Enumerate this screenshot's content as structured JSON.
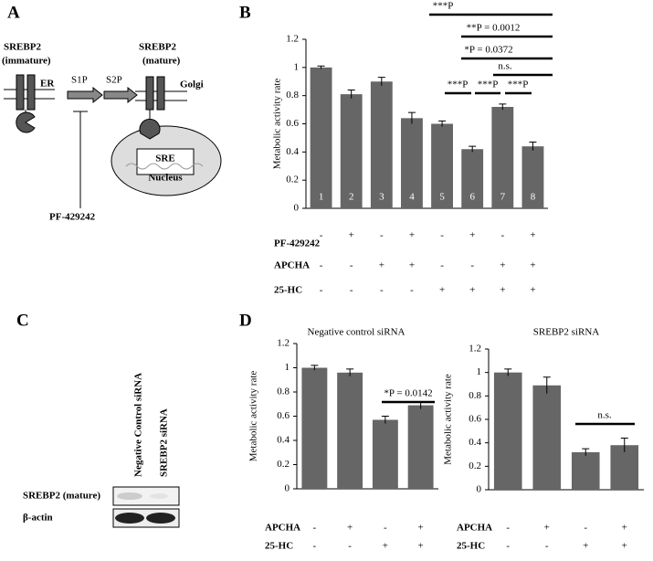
{
  "panel_labels": [
    "A",
    "B",
    "C",
    "D"
  ],
  "diagram": {
    "precursor": [
      "SREBP2",
      "(immature)"
    ],
    "er": "ER",
    "s1p": "S1P",
    "s2p": "S2P",
    "mature": [
      "SREBP2",
      "(mature)"
    ],
    "golgi": "Golgi",
    "sre": "SRE",
    "nucleus": "Nucleus",
    "inhibitor": "PF-429242"
  },
  "blot": {
    "lanes": [
      "Negative Control siRNA",
      "SREBP2 siRNA"
    ],
    "rows": [
      "SREBP2 (mature)",
      "β-actin"
    ]
  },
  "chart_data": [
    {
      "type": "bar",
      "y_label": "Metabolic activity rate",
      "categories": [
        "1",
        "2",
        "3",
        "4",
        "5",
        "6",
        "7",
        "8"
      ],
      "values": [
        1.0,
        0.81,
        0.9,
        0.64,
        0.6,
        0.42,
        0.72,
        0.44
      ],
      "errors": [
        0.01,
        0.03,
        0.03,
        0.04,
        0.02,
        0.02,
        0.02,
        0.03
      ],
      "color": "#666666",
      "ylim": [
        0,
        1.2
      ],
      "yticks": [
        0,
        0.2,
        0.4,
        0.6,
        0.8,
        1,
        1.2
      ],
      "annotations": [
        "***P",
        "**P = 0.0012",
        "*P = 0.0372",
        "n.s.",
        "***P",
        "***P",
        "***P"
      ],
      "conditions": [
        {
          "name": "PF-429242",
          "signs": [
            "-",
            "+",
            "-",
            "+",
            "-",
            "+",
            "-",
            "+"
          ]
        },
        {
          "name": "APCHA",
          "signs": [
            "-",
            "-",
            "+",
            "+",
            "-",
            "-",
            "+",
            "+"
          ]
        },
        {
          "name": "25-HC",
          "signs": [
            "-",
            "-",
            "-",
            "-",
            "+",
            "+",
            "+",
            "+"
          ]
        }
      ]
    },
    {
      "type": "bar",
      "title": "Negative control siRNA",
      "y_label": "Metabolic activity rate",
      "categories": [
        null,
        null,
        null,
        null
      ],
      "values": [
        1.0,
        0.96,
        0.57,
        0.69
      ],
      "errors": [
        0.02,
        0.03,
        0.03,
        0.03
      ],
      "color": "#666666",
      "ylim": [
        0,
        1.2
      ],
      "yticks": [
        0,
        0.2,
        0.4,
        0.6,
        0.8,
        1,
        1.2
      ],
      "annotations": [
        "*P = 0.0142"
      ],
      "conditions": [
        {
          "name": "APCHA",
          "signs": [
            "-",
            "+",
            "-",
            "+"
          ]
        },
        {
          "name": "25-HC",
          "signs": [
            "-",
            "-",
            "+",
            "+"
          ]
        }
      ]
    },
    {
      "type": "bar",
      "title": "SREBP2 siRNA",
      "y_label": "Metabolic activity rate",
      "categories": [
        null,
        null,
        null,
        null
      ],
      "values": [
        1.0,
        0.89,
        0.32,
        0.38
      ],
      "errors": [
        0.03,
        0.07,
        0.03,
        0.06
      ],
      "color": "#666666",
      "ylim": [
        0,
        1.2
      ],
      "yticks": [
        0,
        0.2,
        0.4,
        0.6,
        0.8,
        1,
        1.2
      ],
      "annotations": [
        "n.s."
      ],
      "conditions": [
        {
          "name": "APCHA",
          "signs": [
            "-",
            "+",
            "-",
            "+"
          ]
        },
        {
          "name": "25-HC",
          "signs": [
            "-",
            "-",
            "+",
            "+"
          ]
        }
      ]
    }
  ]
}
